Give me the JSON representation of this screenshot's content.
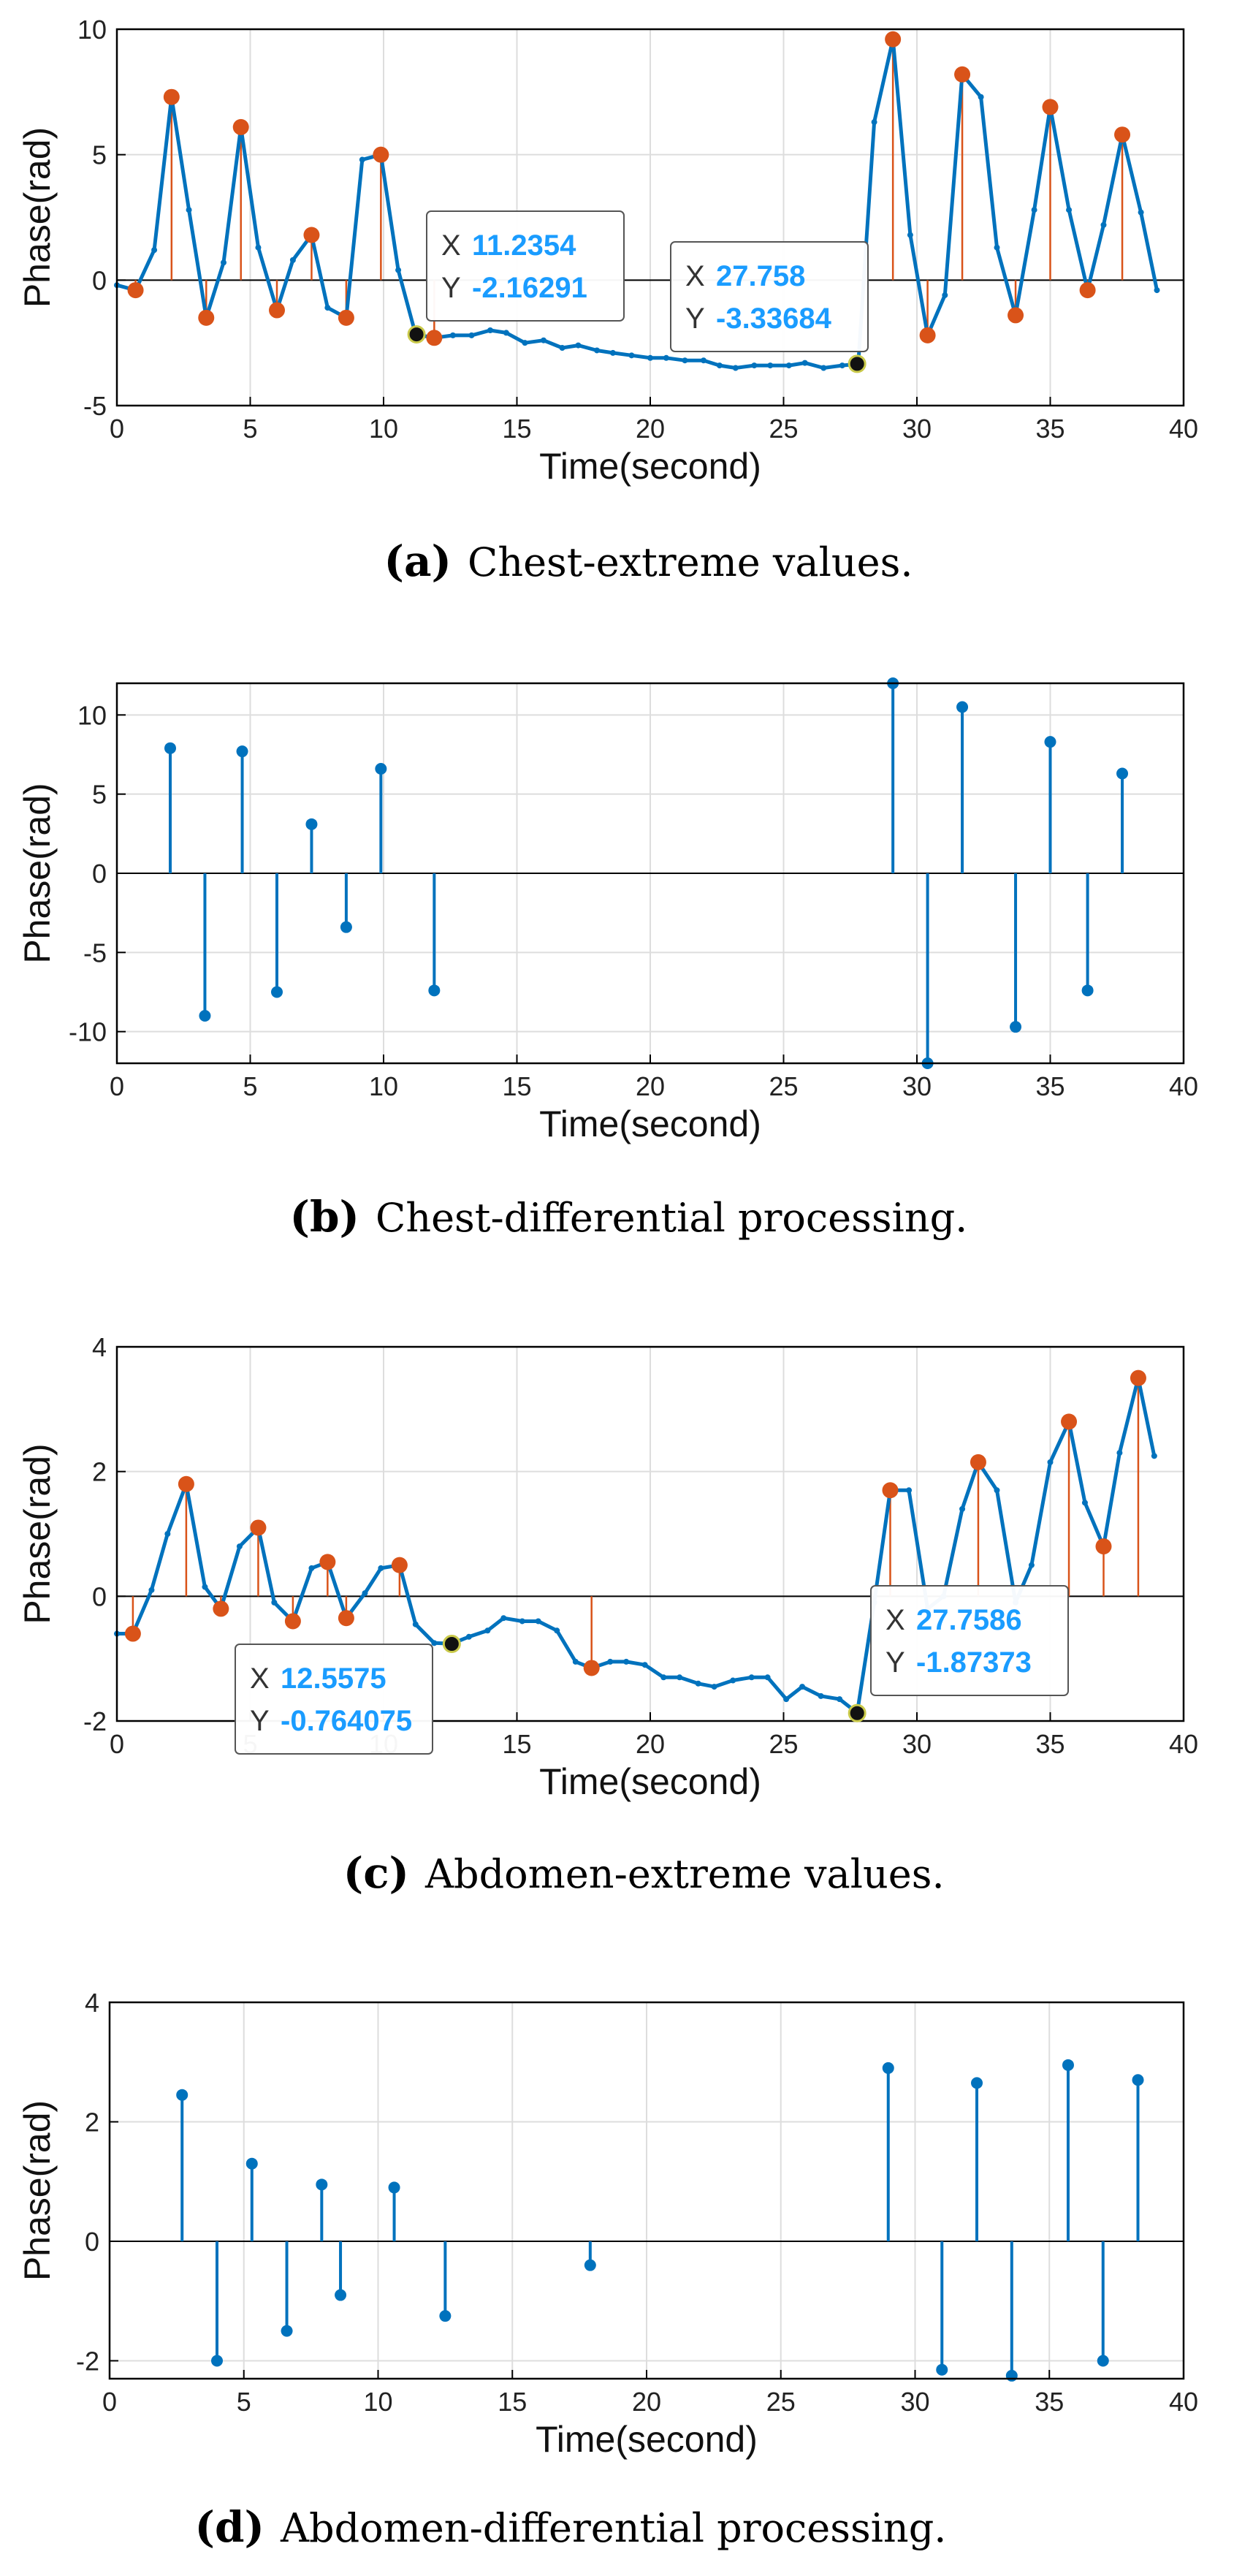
{
  "colors": {
    "blue": "#0072BD",
    "orange": "#D95319",
    "grid": "#dddddd",
    "tip_value": "#1a9cff",
    "tip_label": "#333333"
  },
  "chart_data": [
    {
      "id": "a",
      "type": "line",
      "label": "(a)",
      "caption": "Chest-extreme values.",
      "xlabel": "Time(second)",
      "ylabel": "Phase(rad)",
      "xlim": [
        0,
        40
      ],
      "ylim": [
        -5,
        10
      ],
      "xticks": [
        "0",
        "5",
        "10",
        "15",
        "20",
        "25",
        "30",
        "35",
        "40"
      ],
      "yticks": [
        "-5",
        "0",
        "5",
        "10"
      ],
      "series": [
        {
          "name": "phase",
          "color": "#0072BD",
          "x": [
            0.0,
            0.7,
            1.4,
            2.05,
            2.7,
            3.35,
            4.0,
            4.65,
            5.3,
            6.0,
            6.6,
            7.3,
            7.9,
            8.6,
            9.2,
            9.9,
            10.55,
            11.2,
            11.9,
            12.6,
            13.3,
            14.0,
            14.6,
            15.3,
            16.0,
            16.7,
            17.3,
            18.0,
            18.6,
            19.3,
            20.0,
            20.6,
            21.3,
            22.0,
            22.6,
            23.2,
            23.9,
            24.5,
            25.2,
            25.8,
            26.5,
            27.2,
            27.8,
            28.4,
            29.1,
            29.75,
            30.4,
            31.05,
            31.7,
            32.4,
            33.0,
            33.7,
            34.4,
            35.0,
            35.7,
            36.4,
            37.0,
            37.7,
            38.4,
            39.0
          ],
          "y": [
            -0.2,
            -0.4,
            1.2,
            7.3,
            2.8,
            -1.5,
            0.7,
            6.1,
            1.3,
            -1.2,
            0.8,
            1.8,
            -1.1,
            -1.5,
            4.8,
            5.0,
            0.4,
            -2.16,
            -2.3,
            -2.2,
            -2.2,
            -2.0,
            -2.1,
            -2.5,
            -2.4,
            -2.7,
            -2.6,
            -2.8,
            -2.9,
            -3.0,
            -3.1,
            -3.1,
            -3.2,
            -3.2,
            -3.4,
            -3.5,
            -3.4,
            -3.4,
            -3.4,
            -3.3,
            -3.5,
            -3.4,
            -3.34,
            6.3,
            9.6,
            1.8,
            -2.2,
            -0.6,
            8.2,
            7.3,
            1.3,
            -1.4,
            2.8,
            6.9,
            2.8,
            -0.4,
            2.2,
            5.8,
            2.7,
            -0.4
          ]
        },
        {
          "name": "extremes",
          "color": "#D95319",
          "x": [
            0.7,
            2.05,
            3.35,
            4.65,
            6.0,
            7.3,
            8.6,
            9.9,
            11.9,
            29.1,
            30.4,
            31.7,
            33.7,
            35.0,
            36.4,
            37.7
          ],
          "y": [
            -0.4,
            7.3,
            -1.5,
            6.1,
            -1.2,
            1.8,
            -1.5,
            5.0,
            -2.3,
            9.6,
            -2.2,
            8.2,
            -1.4,
            6.9,
            -0.4,
            5.8
          ]
        }
      ],
      "datatips": [
        {
          "x_label": "X",
          "x_value": "11.2354",
          "y_label": "Y",
          "y_value": "-2.16291",
          "x": 11.2354,
          "y": -2.16291
        },
        {
          "x_label": "X",
          "x_value": "27.758",
          "y_label": "Y",
          "y_value": "-3.33684",
          "x": 27.758,
          "y": -3.33684
        }
      ]
    },
    {
      "id": "b",
      "type": "stem",
      "label": "(b)",
      "caption": "Chest-differential processing.",
      "xlabel": "Time(second)",
      "ylabel": "Phase(rad)",
      "xlim": [
        0,
        40
      ],
      "ylim": [
        -12,
        12
      ],
      "xticks": [
        "0",
        "5",
        "10",
        "15",
        "20",
        "25",
        "30",
        "35",
        "40"
      ],
      "yticks": [
        "-10",
        "-5",
        "0",
        "5",
        "10"
      ],
      "series": [
        {
          "name": "differential",
          "color": "#0072BD",
          "x": [
            2.0,
            3.3,
            4.7,
            6.0,
            7.3,
            8.6,
            9.9,
            11.9,
            29.1,
            30.4,
            31.7,
            33.7,
            35.0,
            36.4,
            37.7
          ],
          "y": [
            7.9,
            -9.0,
            7.7,
            -7.5,
            3.1,
            -3.4,
            6.6,
            -7.4,
            12.0,
            -12.0,
            10.5,
            -9.7,
            8.3,
            -7.4,
            6.3
          ]
        }
      ],
      "datatips": []
    },
    {
      "id": "c",
      "type": "line",
      "label": "(c)",
      "caption": "Abdomen-extreme values.",
      "xlabel": "Time(second)",
      "ylabel": "Phase(rad)",
      "xlim": [
        0,
        40
      ],
      "ylim": [
        -2,
        4
      ],
      "xticks": [
        "0",
        "5",
        "10",
        "15",
        "20",
        "25",
        "30",
        "35",
        "40"
      ],
      "yticks": [
        "-2",
        "0",
        "2",
        "4"
      ],
      "series": [
        {
          "name": "phase",
          "color": "#0072BD",
          "x": [
            0.0,
            0.6,
            1.3,
            1.9,
            2.6,
            3.3,
            3.9,
            4.6,
            5.3,
            5.9,
            6.6,
            7.3,
            7.9,
            8.6,
            9.3,
            9.9,
            10.6,
            11.2,
            11.9,
            12.56,
            13.2,
            13.9,
            14.5,
            15.2,
            15.8,
            16.5,
            17.2,
            17.8,
            18.5,
            19.1,
            19.8,
            20.5,
            21.1,
            21.8,
            22.4,
            23.1,
            23.8,
            24.4,
            25.1,
            25.7,
            26.4,
            27.1,
            27.76,
            28.4,
            29.0,
            29.7,
            30.4,
            31.0,
            31.7,
            32.3,
            33.0,
            33.7,
            34.3,
            35.0,
            35.7,
            36.3,
            37.0,
            37.6,
            38.3,
            38.9
          ],
          "y": [
            -0.6,
            -0.6,
            0.1,
            1.0,
            1.8,
            0.15,
            -0.2,
            0.8,
            1.1,
            -0.1,
            -0.4,
            0.45,
            0.55,
            -0.35,
            0.05,
            0.45,
            0.5,
            -0.45,
            -0.75,
            -0.76,
            -0.65,
            -0.55,
            -0.35,
            -0.4,
            -0.4,
            -0.55,
            -1.05,
            -1.15,
            -1.05,
            -1.05,
            -1.1,
            -1.3,
            -1.3,
            -1.4,
            -1.45,
            -1.35,
            -1.3,
            -1.3,
            -1.65,
            -1.45,
            -1.6,
            -1.65,
            -1.87,
            -0.1,
            1.7,
            1.7,
            -0.2,
            0.0,
            1.4,
            2.15,
            1.7,
            -0.1,
            0.5,
            2.15,
            2.8,
            1.5,
            0.8,
            2.3,
            3.5,
            2.25
          ]
        },
        {
          "name": "extremes",
          "color": "#D95319",
          "x": [
            0.6,
            2.6,
            3.9,
            5.3,
            6.6,
            7.9,
            8.6,
            10.6,
            17.8,
            29.0,
            32.3,
            35.7,
            37.0,
            38.3
          ],
          "y": [
            -0.6,
            1.8,
            -0.2,
            1.1,
            -0.4,
            0.55,
            -0.35,
            0.5,
            -1.15,
            1.7,
            2.15,
            2.8,
            0.8,
            3.5
          ]
        }
      ],
      "datatips": [
        {
          "x_label": "X",
          "x_value": "12.5575",
          "y_label": "Y",
          "y_value": "-0.764075",
          "x": 12.5575,
          "y": -0.764075
        },
        {
          "x_label": "X",
          "x_value": "27.7586",
          "y_label": "Y",
          "y_value": "-1.87373",
          "x": 27.7586,
          "y": -1.87373
        }
      ]
    },
    {
      "id": "d",
      "type": "stem",
      "label": "(d)",
      "caption": "Abdomen-differential processing.",
      "xlabel": "Time(second)",
      "ylabel": "Phase(rad)",
      "xlim": [
        0,
        40
      ],
      "ylim": [
        -2.3,
        4
      ],
      "xticks": [
        "0",
        "5",
        "10",
        "15",
        "20",
        "25",
        "30",
        "35",
        "40"
      ],
      "yticks": [
        "-2",
        "0",
        "2",
        "4"
      ],
      "series": [
        {
          "name": "differential",
          "color": "#0072BD",
          "x": [
            2.7,
            4.0,
            5.3,
            6.6,
            7.9,
            8.6,
            10.6,
            12.5,
            17.9,
            29.0,
            31.0,
            32.3,
            33.6,
            35.7,
            37.0,
            38.3
          ],
          "y": [
            2.45,
            -2.0,
            1.3,
            -1.5,
            0.95,
            -0.9,
            0.9,
            -1.25,
            -0.4,
            2.9,
            -2.15,
            2.65,
            -2.25,
            2.95,
            -2.0,
            2.7
          ]
        }
      ],
      "datatips": []
    }
  ]
}
